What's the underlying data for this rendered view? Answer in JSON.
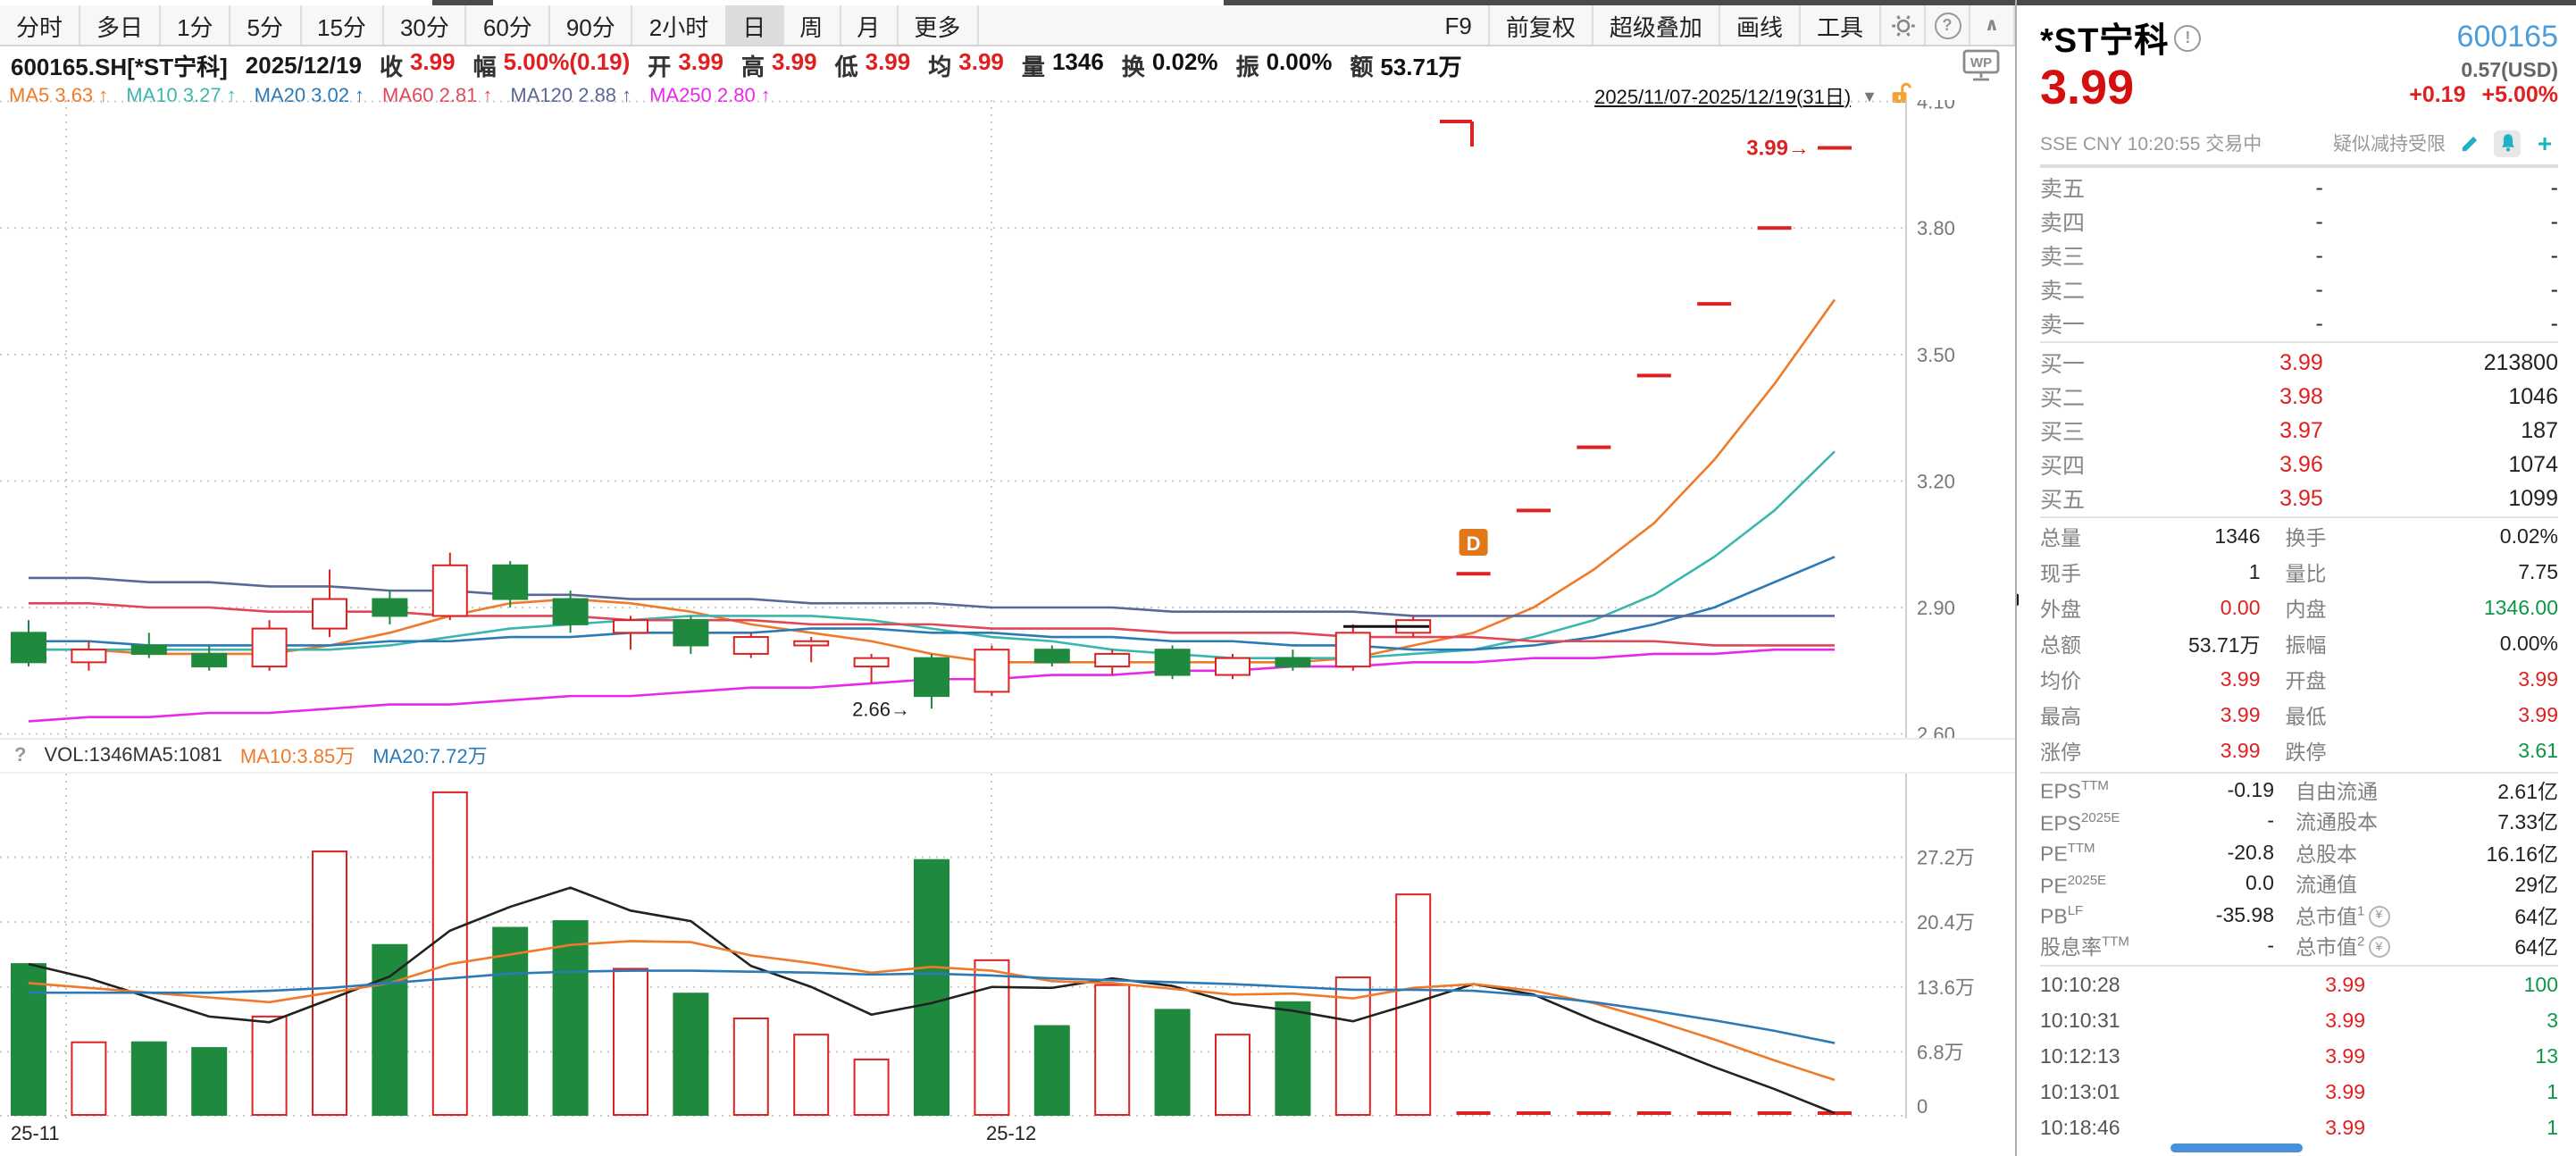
{
  "toolbar": {
    "tabs": [
      "分时",
      "多日",
      "1分",
      "5分",
      "15分",
      "30分",
      "60分",
      "90分",
      "2小时",
      "日",
      "周",
      "月",
      "更多"
    ],
    "active_tab": "日",
    "actions": [
      "F9",
      "前复权",
      "超级叠加",
      "画线",
      "工具"
    ]
  },
  "icons": {
    "help": "?",
    "collapse": "∧",
    "dropdown": "▼",
    "chart_help": "?",
    "wp": "WP",
    "plus": "+",
    "warning": "!",
    "yen": "¥",
    "arrow_right": "→",
    "panel_collapse": "▶",
    "trend_up": "↑",
    "d_marker": "D"
  },
  "info": {
    "symbol": "600165.SH[*ST宁科]",
    "date": "2025/12/19",
    "fields": [
      {
        "label": "收",
        "value": "3.99",
        "c": "red"
      },
      {
        "label": "幅",
        "value": "5.00%(0.19)",
        "c": "red"
      },
      {
        "label": "开",
        "value": "3.99",
        "c": "red"
      },
      {
        "label": "高",
        "value": "3.99",
        "c": "red"
      },
      {
        "label": "低",
        "value": "3.99",
        "c": "red"
      },
      {
        "label": "均",
        "value": "3.99",
        "c": "red"
      },
      {
        "label": "量",
        "value": "1346",
        "c": "k"
      },
      {
        "label": "换",
        "value": "0.02%",
        "c": "k"
      },
      {
        "label": "振",
        "value": "0.00%",
        "c": "k"
      },
      {
        "label": "额",
        "value": "53.71万",
        "c": "k"
      }
    ]
  },
  "ma_legend": [
    {
      "text": "MA5 3.63",
      "color": "#f0792a"
    },
    {
      "text": "MA10 3.27",
      "color": "#3bb6ae"
    },
    {
      "text": "MA20 3.02",
      "color": "#2a7ab8"
    },
    {
      "text": "MA60 2.81",
      "color": "#e04858"
    },
    {
      "text": "MA120 2.88",
      "color": "#5a6898"
    },
    {
      "text": "MA250 2.80",
      "color": "#e928e9"
    }
  ],
  "range": {
    "label": "2025/11/07-2025/12/19(31日)"
  },
  "vol_header": {
    "vol_ma5": "VOL:1346MA5:1081",
    "ma10": "MA10:3.85万",
    "ma20": "MA20:7.72万"
  },
  "chart_data": {
    "type": "candlestick_with_volume",
    "title": "600165.SH *ST宁科 daily",
    "price_axis": [
      "4.10",
      "3.80",
      "3.50",
      "3.20",
      "2.90",
      "2.60"
    ],
    "volume_axis": [
      "27.2万",
      "20.4万",
      "13.6万",
      "6.8万",
      "0"
    ],
    "x_ticks": [
      {
        "label": "25-11",
        "x": 6
      },
      {
        "label": "25-12",
        "x": 552
      }
    ],
    "candles": [
      [
        2.84,
        2.87,
        2.76,
        2.77,
        16.0
      ],
      [
        2.77,
        2.82,
        2.75,
        2.8,
        7.8
      ],
      [
        2.81,
        2.84,
        2.78,
        2.79,
        7.8
      ],
      [
        2.79,
        2.81,
        2.75,
        2.76,
        7.2
      ],
      [
        2.76,
        2.87,
        2.75,
        2.85,
        10.5
      ],
      [
        2.85,
        2.99,
        2.83,
        2.92,
        27.8
      ],
      [
        2.92,
        2.94,
        2.86,
        2.88,
        18.0
      ],
      [
        2.88,
        3.03,
        2.87,
        3.0,
        34.0
      ],
      [
        3.0,
        3.01,
        2.9,
        2.92,
        19.8
      ],
      [
        2.92,
        2.94,
        2.84,
        2.86,
        20.5
      ],
      [
        2.84,
        2.88,
        2.8,
        2.87,
        15.5
      ],
      [
        2.87,
        2.88,
        2.79,
        2.81,
        12.9
      ],
      [
        2.79,
        2.84,
        2.78,
        2.83,
        10.3
      ],
      [
        2.81,
        2.83,
        2.77,
        2.82,
        8.6
      ],
      [
        2.76,
        2.79,
        2.72,
        2.78,
        6.0
      ],
      [
        2.78,
        2.79,
        2.66,
        2.69,
        26.9
      ],
      [
        2.7,
        2.81,
        2.69,
        2.8,
        16.4
      ],
      [
        2.8,
        2.81,
        2.76,
        2.77,
        9.5
      ],
      [
        2.76,
        2.8,
        2.74,
        2.79,
        13.8
      ],
      [
        2.8,
        2.81,
        2.73,
        2.74,
        11.2
      ],
      [
        2.74,
        2.79,
        2.73,
        2.78,
        8.6
      ],
      [
        2.78,
        2.8,
        2.75,
        2.76,
        12.0
      ],
      [
        2.76,
        2.86,
        2.75,
        2.84,
        14.6
      ],
      [
        2.84,
        2.88,
        2.83,
        2.87,
        23.3
      ],
      [
        2.98,
        2.98,
        2.98,
        2.98,
        0.15
      ],
      [
        3.13,
        3.13,
        3.13,
        3.13,
        0.1
      ],
      [
        3.28,
        3.28,
        3.28,
        3.28,
        0.1
      ],
      [
        3.45,
        3.45,
        3.45,
        3.45,
        0.1
      ],
      [
        3.62,
        3.62,
        3.62,
        3.62,
        0.1
      ],
      [
        3.8,
        3.8,
        3.8,
        3.8,
        0.1
      ],
      [
        3.99,
        3.99,
        3.99,
        3.99,
        0.13
      ]
    ],
    "overlays": {
      "ma5": {
        "color": "#f0792a",
        "values": [
          2.8,
          2.8,
          2.79,
          2.79,
          2.79,
          2.81,
          2.84,
          2.88,
          2.91,
          2.92,
          2.91,
          2.89,
          2.86,
          2.84,
          2.82,
          2.79,
          2.77,
          2.77,
          2.77,
          2.77,
          2.77,
          2.77,
          2.78,
          2.81,
          2.84,
          2.9,
          2.99,
          3.1,
          3.25,
          3.43,
          3.63
        ]
      },
      "ma10": {
        "color": "#3bb6ae",
        "values": [
          2.8,
          2.8,
          2.8,
          2.8,
          2.8,
          2.8,
          2.81,
          2.83,
          2.85,
          2.86,
          2.87,
          2.88,
          2.88,
          2.88,
          2.87,
          2.85,
          2.83,
          2.82,
          2.8,
          2.79,
          2.78,
          2.78,
          2.78,
          2.79,
          2.8,
          2.83,
          2.87,
          2.93,
          3.02,
          3.13,
          3.27
        ]
      },
      "ma20": {
        "color": "#2a7ab8",
        "values": [
          2.82,
          2.82,
          2.81,
          2.81,
          2.81,
          2.81,
          2.82,
          2.82,
          2.83,
          2.83,
          2.84,
          2.84,
          2.84,
          2.85,
          2.85,
          2.84,
          2.84,
          2.83,
          2.83,
          2.82,
          2.82,
          2.81,
          2.81,
          2.8,
          2.8,
          2.81,
          2.83,
          2.86,
          2.9,
          2.96,
          3.02
        ]
      },
      "ma60": {
        "color": "#e04858",
        "values": [
          2.91,
          2.91,
          2.9,
          2.9,
          2.89,
          2.89,
          2.89,
          2.88,
          2.88,
          2.88,
          2.87,
          2.87,
          2.87,
          2.86,
          2.86,
          2.86,
          2.85,
          2.85,
          2.85,
          2.84,
          2.84,
          2.84,
          2.83,
          2.83,
          2.83,
          2.82,
          2.82,
          2.82,
          2.81,
          2.81,
          2.81
        ]
      },
      "ma120": {
        "color": "#5a6898",
        "values": [
          2.97,
          2.97,
          2.96,
          2.96,
          2.95,
          2.95,
          2.94,
          2.94,
          2.93,
          2.93,
          2.92,
          2.92,
          2.92,
          2.91,
          2.91,
          2.91,
          2.9,
          2.9,
          2.9,
          2.89,
          2.89,
          2.89,
          2.89,
          2.88,
          2.88,
          2.88,
          2.88,
          2.88,
          2.88,
          2.88,
          2.88
        ]
      },
      "ma250": {
        "color": "#e928e9",
        "values": [
          2.63,
          2.64,
          2.64,
          2.65,
          2.65,
          2.66,
          2.67,
          2.67,
          2.68,
          2.69,
          2.69,
          2.7,
          2.71,
          2.71,
          2.72,
          2.73,
          2.73,
          2.74,
          2.74,
          2.75,
          2.75,
          2.76,
          2.76,
          2.77,
          2.77,
          2.78,
          2.78,
          2.79,
          2.79,
          2.8,
          2.8
        ]
      }
    },
    "volume_ma": {
      "ma5": {
        "color": "#222222",
        "values": [
          16.0,
          14.5,
          12.5,
          10.5,
          9.9,
          12.3,
          14.7,
          19.5,
          22.0,
          24.0,
          21.6,
          20.5,
          15.8,
          13.6,
          10.7,
          11.9,
          13.6,
          13.5,
          14.5,
          13.7,
          11.9,
          11.1,
          10.0,
          11.9,
          13.9,
          12.8,
          10.1,
          7.7,
          5.2,
          2.9,
          0.11
        ]
      },
      "ma10": {
        "color": "#f0792a",
        "values": [
          14.0,
          13.5,
          13.0,
          12.5,
          12.0,
          13.0,
          14.0,
          16.0,
          17.0,
          18.0,
          18.4,
          18.3,
          16.9,
          16.1,
          15.1,
          15.7,
          15.3,
          14.2,
          14.0,
          13.4,
          12.8,
          12.9,
          12.4,
          13.5,
          13.9,
          13.2,
          11.9,
          10.1,
          8.1,
          5.9,
          3.85
        ]
      },
      "ma20": {
        "color": "#2a7ab8",
        "values": [
          13.0,
          13.0,
          13.0,
          13.0,
          13.2,
          13.5,
          14.0,
          14.5,
          15.0,
          15.2,
          15.3,
          15.3,
          15.2,
          15.1,
          14.9,
          15.0,
          14.8,
          14.5,
          14.3,
          14.1,
          13.9,
          13.6,
          13.3,
          13.3,
          13.2,
          12.7,
          12.0,
          11.1,
          10.1,
          9.0,
          7.72
        ]
      }
    },
    "annotations": {
      "low_label": "2.66",
      "low_bar": 15,
      "low_price": 2.66,
      "last_label": "3.99",
      "last_bar": 30,
      "last_price": 3.99,
      "d_marker_bar": 24
    },
    "colors": {
      "up": "#dd2222",
      "down": "#1f8a3d"
    }
  },
  "panel": {
    "name": "*ST宁科",
    "code": "600165",
    "price": "3.99",
    "usd": "0.57(USD)",
    "change": "+0.19",
    "change_pct": "+5.00%",
    "status": "SSE  CNY  10:20:55  交易中",
    "tag": "疑似减持受限",
    "asks": [
      {
        "label": "卖五",
        "price": "-",
        "vol": "-"
      },
      {
        "label": "卖四",
        "price": "-",
        "vol": "-"
      },
      {
        "label": "卖三",
        "price": "-",
        "vol": "-"
      },
      {
        "label": "卖二",
        "price": "-",
        "vol": "-"
      },
      {
        "label": "卖一",
        "price": "-",
        "vol": "-"
      }
    ],
    "bids": [
      {
        "label": "买一",
        "price": "3.99",
        "vol": "213800"
      },
      {
        "label": "买二",
        "price": "3.98",
        "vol": "1046"
      },
      {
        "label": "买三",
        "price": "3.97",
        "vol": "187"
      },
      {
        "label": "买四",
        "price": "3.96",
        "vol": "1074"
      },
      {
        "label": "买五",
        "price": "3.95",
        "vol": "1099"
      }
    ],
    "stats": [
      {
        "l": "总量",
        "v": "1346",
        "c": "k",
        "l2": "换手",
        "v2": "0.02%",
        "c2": "k"
      },
      {
        "l": "现手",
        "v": "1",
        "c": "k",
        "l2": "量比",
        "v2": "7.75",
        "c2": "k"
      },
      {
        "l": "外盘",
        "v": "0.00",
        "c": "red",
        "l2": "内盘",
        "v2": "1346.00",
        "c2": "green"
      },
      {
        "l": "总额",
        "v": "53.71万",
        "c": "k",
        "l2": "振幅",
        "v2": "0.00%",
        "c2": "k"
      },
      {
        "l": "均价",
        "v": "3.99",
        "c": "red",
        "l2": "开盘",
        "v2": "3.99",
        "c2": "red"
      },
      {
        "l": "最高",
        "v": "3.99",
        "c": "red",
        "l2": "最低",
        "v2": "3.99",
        "c2": "red"
      },
      {
        "l": "涨停",
        "v": "3.99",
        "c": "red",
        "l2": "跌停",
        "v2": "3.61",
        "c2": "green"
      }
    ],
    "fundamentals": [
      {
        "l": "EPS",
        "sup": "TTM",
        "v": "-0.19",
        "l2": "自由流通",
        "v2": "2.61亿",
        "yen": false
      },
      {
        "l": "EPS",
        "sup": "2025E",
        "v": "-",
        "l2": "流通股本",
        "v2": "7.33亿",
        "yen": false
      },
      {
        "l": "PE",
        "sup": "TTM",
        "v": "-20.8",
        "l2": "总股本",
        "v2": "16.16亿",
        "yen": false
      },
      {
        "l": "PE",
        "sup": "2025E",
        "v": "0.0",
        "l2": "流通值",
        "v2": "29亿",
        "yen": false
      },
      {
        "l": "PB",
        "sup": "LF",
        "v": "-35.98",
        "l2": "总市值",
        "sup2": "1",
        "v2": "64亿",
        "yen": true
      },
      {
        "l": "股息率",
        "sup": "TTM",
        "v": "-",
        "l2": "总市值",
        "sup2": "2",
        "v2": "64亿",
        "yen": true
      }
    ],
    "ticks": [
      {
        "time": "10:10:28",
        "price": "3.99",
        "vol": "100"
      },
      {
        "time": "10:10:31",
        "price": "3.99",
        "vol": "3"
      },
      {
        "time": "10:12:13",
        "price": "3.99",
        "vol": "13"
      },
      {
        "time": "10:13:01",
        "price": "3.99",
        "vol": "1"
      },
      {
        "time": "10:18:46",
        "price": "3.99",
        "vol": "1"
      }
    ]
  }
}
